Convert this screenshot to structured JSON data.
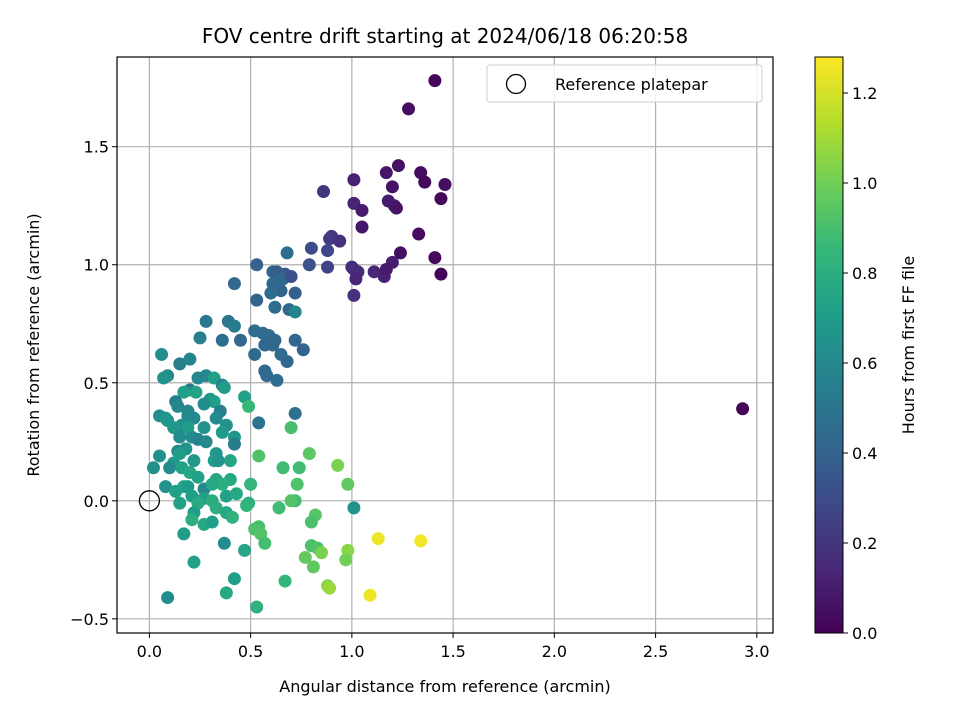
{
  "chart_data": {
    "type": "scatter",
    "title": "FOV centre drift starting at 2024/06/18 06:20:58",
    "xlabel": "Angular distance from reference (arcmin)",
    "ylabel": "Rotation from reference (arcmin)",
    "xlim": [
      -0.16,
      3.08
    ],
    "ylim": [
      -0.56,
      1.88
    ],
    "xticks": [
      0.0,
      0.5,
      1.0,
      1.5,
      2.0,
      2.5,
      3.0
    ],
    "xtick_labels": [
      "0.0",
      "0.5",
      "1.0",
      "1.5",
      "2.0",
      "2.5",
      "3.0"
    ],
    "yticks": [
      -0.5,
      0.0,
      0.5,
      1.0,
      1.5
    ],
    "ytick_labels": [
      "−0.5",
      "0.0",
      "0.5",
      "1.0",
      "1.5"
    ],
    "grid": true,
    "legend": {
      "placement": "upper-right",
      "entries": [
        "Reference platepar"
      ]
    },
    "reference_point": {
      "x": 0.0,
      "y": 0.0
    },
    "colorbar": {
      "label": "Hours from first FF file",
      "colormap": "viridis",
      "range": [
        0.0,
        1.28
      ],
      "ticks": [
        0.0,
        0.2,
        0.4,
        0.6,
        0.8,
        1.0,
        1.2
      ],
      "tick_labels": [
        "0.0",
        "0.2",
        "0.4",
        "0.6",
        "0.8",
        "1.0",
        "1.2"
      ],
      "stops": [
        "#440154",
        "#482878",
        "#3e4989",
        "#31688e",
        "#26828e",
        "#1f9e89",
        "#35b779",
        "#6ece58",
        "#b5de2b",
        "#fde725"
      ]
    },
    "points": [
      [
        1.41,
        1.78,
        0.02
      ],
      [
        1.28,
        1.66,
        0.05
      ],
      [
        1.23,
        1.42,
        0.06
      ],
      [
        1.34,
        1.39,
        0.04
      ],
      [
        1.36,
        1.35,
        0.03
      ],
      [
        1.46,
        1.34,
        0.05
      ],
      [
        1.44,
        1.28,
        0.03
      ],
      [
        1.17,
        1.39,
        0.08
      ],
      [
        1.2,
        1.33,
        0.07
      ],
      [
        1.18,
        1.27,
        0.1
      ],
      [
        1.21,
        1.25,
        0.09
      ],
      [
        1.22,
        1.24,
        0.07
      ],
      [
        1.33,
        1.13,
        0.04
      ],
      [
        1.24,
        1.05,
        0.05
      ],
      [
        1.2,
        1.01,
        0.11
      ],
      [
        1.41,
        1.03,
        0.03
      ],
      [
        1.44,
        0.96,
        0.02
      ],
      [
        1.16,
        0.95,
        0.12
      ],
      [
        1.17,
        0.98,
        0.09
      ],
      [
        1.11,
        0.97,
        0.14
      ],
      [
        1.01,
        1.36,
        0.12
      ],
      [
        1.01,
        1.26,
        0.13
      ],
      [
        1.05,
        1.23,
        0.1
      ],
      [
        1.05,
        1.16,
        0.08
      ],
      [
        0.9,
        1.12,
        0.2
      ],
      [
        0.89,
        1.11,
        0.22
      ],
      [
        0.94,
        1.1,
        0.18
      ],
      [
        0.86,
        1.31,
        0.2
      ],
      [
        1.0,
        0.99,
        0.15
      ],
      [
        1.01,
        0.98,
        0.17
      ],
      [
        1.03,
        0.97,
        0.16
      ],
      [
        1.02,
        0.94,
        0.13
      ],
      [
        1.01,
        0.87,
        0.18
      ],
      [
        0.8,
        1.07,
        0.3
      ],
      [
        0.88,
        1.06,
        0.28
      ],
      [
        0.79,
        1.0,
        0.33
      ],
      [
        0.88,
        0.99,
        0.26
      ],
      [
        0.53,
        1.0,
        0.4
      ],
      [
        0.68,
        1.05,
        0.45
      ],
      [
        0.61,
        0.97,
        0.41
      ],
      [
        0.63,
        0.97,
        0.38
      ],
      [
        0.67,
        0.96,
        0.36
      ],
      [
        0.66,
        0.94,
        0.43
      ],
      [
        0.7,
        0.95,
        0.32
      ],
      [
        0.61,
        0.92,
        0.44
      ],
      [
        0.65,
        0.89,
        0.41
      ],
      [
        0.72,
        0.88,
        0.39
      ],
      [
        0.6,
        0.88,
        0.45
      ],
      [
        0.42,
        0.92,
        0.42
      ],
      [
        0.53,
        0.85,
        0.41
      ],
      [
        0.62,
        0.82,
        0.45
      ],
      [
        0.69,
        0.81,
        0.42
      ],
      [
        0.72,
        0.8,
        0.58
      ],
      [
        0.28,
        0.76,
        0.52
      ],
      [
        0.39,
        0.76,
        0.5
      ],
      [
        0.42,
        0.74,
        0.53
      ],
      [
        0.52,
        0.72,
        0.45
      ],
      [
        0.56,
        0.71,
        0.44
      ],
      [
        0.59,
        0.7,
        0.45
      ],
      [
        0.36,
        0.68,
        0.46
      ],
      [
        0.45,
        0.68,
        0.42
      ],
      [
        0.62,
        0.68,
        0.44
      ],
      [
        0.25,
        0.69,
        0.55
      ],
      [
        0.72,
        0.68,
        0.42
      ],
      [
        0.57,
        0.66,
        0.43
      ],
      [
        0.61,
        0.66,
        0.42
      ],
      [
        0.76,
        0.64,
        0.41
      ],
      [
        0.52,
        0.62,
        0.43
      ],
      [
        0.65,
        0.62,
        0.45
      ],
      [
        0.68,
        0.59,
        0.43
      ],
      [
        0.2,
        0.6,
        0.58
      ],
      [
        0.06,
        0.62,
        0.62
      ],
      [
        0.15,
        0.58,
        0.55
      ],
      [
        0.24,
        0.52,
        0.6
      ],
      [
        0.57,
        0.55,
        0.43
      ],
      [
        0.58,
        0.53,
        0.44
      ],
      [
        0.63,
        0.51,
        0.45
      ],
      [
        0.09,
        0.53,
        0.62
      ],
      [
        0.07,
        0.52,
        0.66
      ],
      [
        0.28,
        0.53,
        0.59
      ],
      [
        0.32,
        0.52,
        0.72
      ],
      [
        0.36,
        0.49,
        0.56
      ],
      [
        0.2,
        0.47,
        0.55
      ],
      [
        0.17,
        0.46,
        0.72
      ],
      [
        0.23,
        0.46,
        0.74
      ],
      [
        0.37,
        0.48,
        0.7
      ],
      [
        0.47,
        0.44,
        0.73
      ],
      [
        0.13,
        0.42,
        0.55
      ],
      [
        0.3,
        0.43,
        0.68
      ],
      [
        0.49,
        0.4,
        0.86
      ],
      [
        0.32,
        0.42,
        0.72
      ],
      [
        0.14,
        0.4,
        0.6
      ],
      [
        0.19,
        0.38,
        0.58
      ],
      [
        0.27,
        0.41,
        0.62
      ],
      [
        0.35,
        0.38,
        0.54
      ],
      [
        0.72,
        0.37,
        0.47
      ],
      [
        0.05,
        0.36,
        0.63
      ],
      [
        0.09,
        0.34,
        0.64
      ],
      [
        0.19,
        0.36,
        0.61
      ],
      [
        0.22,
        0.35,
        0.6
      ],
      [
        0.33,
        0.35,
        0.61
      ],
      [
        0.08,
        0.35,
        0.67
      ],
      [
        0.16,
        0.32,
        0.63
      ],
      [
        0.38,
        0.32,
        0.65
      ],
      [
        0.12,
        0.31,
        0.68
      ],
      [
        0.27,
        0.31,
        0.66
      ],
      [
        0.54,
        0.33,
        0.49
      ],
      [
        0.19,
        0.31,
        0.71
      ],
      [
        0.7,
        0.31,
        0.9
      ],
      [
        0.36,
        0.29,
        0.69
      ],
      [
        0.42,
        0.27,
        0.67
      ],
      [
        0.15,
        0.27,
        0.62
      ],
      [
        0.21,
        0.27,
        0.63
      ],
      [
        0.24,
        0.26,
        0.58
      ],
      [
        0.28,
        0.25,
        0.6
      ],
      [
        0.42,
        0.24,
        0.53
      ],
      [
        0.18,
        0.22,
        0.65
      ],
      [
        0.14,
        0.21,
        0.61
      ],
      [
        0.33,
        0.2,
        0.67
      ],
      [
        0.79,
        0.2,
        0.95
      ],
      [
        0.54,
        0.19,
        0.92
      ],
      [
        0.15,
        0.2,
        0.7
      ],
      [
        0.05,
        0.19,
        0.64
      ],
      [
        0.32,
        0.17,
        0.72
      ],
      [
        0.4,
        0.17,
        0.75
      ],
      [
        0.12,
        0.16,
        0.69
      ],
      [
        0.34,
        0.17,
        0.66
      ],
      [
        0.22,
        0.17,
        0.68
      ],
      [
        0.02,
        0.14,
        0.64
      ],
      [
        0.1,
        0.14,
        0.61
      ],
      [
        0.16,
        0.14,
        0.74
      ],
      [
        0.2,
        0.12,
        0.76
      ],
      [
        0.66,
        0.14,
        0.88
      ],
      [
        0.74,
        0.14,
        0.88
      ],
      [
        0.93,
        0.15,
        1.02
      ],
      [
        0.24,
        0.1,
        0.73
      ],
      [
        0.33,
        0.09,
        0.76
      ],
      [
        0.4,
        0.09,
        0.77
      ],
      [
        0.36,
        0.07,
        0.8
      ],
      [
        0.17,
        0.06,
        0.75
      ],
      [
        0.19,
        0.06,
        0.7
      ],
      [
        0.27,
        0.05,
        0.6
      ],
      [
        0.08,
        0.06,
        0.65
      ],
      [
        0.31,
        0.07,
        0.76
      ],
      [
        0.5,
        0.07,
        0.84
      ],
      [
        0.73,
        0.07,
        0.92
      ],
      [
        0.98,
        0.07,
        0.96
      ],
      [
        0.13,
        0.04,
        0.72
      ],
      [
        0.21,
        0.02,
        0.71
      ],
      [
        0.27,
        0.01,
        0.72
      ],
      [
        0.38,
        0.02,
        0.73
      ],
      [
        0.43,
        0.03,
        0.77
      ],
      [
        0.72,
        0.0,
        0.89
      ],
      [
        0.7,
        0.0,
        0.93
      ],
      [
        0.31,
        0.0,
        0.79
      ],
      [
        0.49,
        -0.01,
        0.8
      ],
      [
        0.15,
        -0.01,
        0.73
      ],
      [
        0.24,
        -0.01,
        0.78
      ],
      [
        0.48,
        -0.02,
        0.83
      ],
      [
        0.33,
        -0.03,
        0.8
      ],
      [
        1.01,
        -0.03,
        0.65
      ],
      [
        0.22,
        -0.05,
        0.72
      ],
      [
        0.38,
        -0.05,
        0.76
      ],
      [
        0.64,
        -0.03,
        0.88
      ],
      [
        0.41,
        -0.07,
        0.82
      ],
      [
        0.82,
        -0.06,
        0.94
      ],
      [
        0.21,
        -0.08,
        0.8
      ],
      [
        0.27,
        -0.1,
        0.77
      ],
      [
        0.31,
        -0.09,
        0.72
      ],
      [
        0.8,
        -0.09,
        0.91
      ],
      [
        0.54,
        -0.11,
        0.9
      ],
      [
        0.52,
        -0.12,
        0.91
      ],
      [
        0.55,
        -0.14,
        0.93
      ],
      [
        0.17,
        -0.14,
        0.7
      ],
      [
        0.37,
        -0.18,
        0.62
      ],
      [
        0.57,
        -0.18,
        0.89
      ],
      [
        0.8,
        -0.19,
        0.91
      ],
      [
        0.83,
        -0.2,
        0.92
      ],
      [
        1.13,
        -0.16,
        1.25
      ],
      [
        1.34,
        -0.17,
        1.26
      ],
      [
        0.98,
        -0.21,
        1.05
      ],
      [
        0.47,
        -0.21,
        0.75
      ],
      [
        0.85,
        -0.22,
        1.02
      ],
      [
        0.77,
        -0.24,
        0.97
      ],
      [
        0.97,
        -0.25,
        1.0
      ],
      [
        0.22,
        -0.26,
        0.73
      ],
      [
        0.81,
        -0.28,
        0.96
      ],
      [
        0.42,
        -0.33,
        0.71
      ],
      [
        0.67,
        -0.34,
        0.84
      ],
      [
        0.88,
        -0.36,
        1.05
      ],
      [
        0.89,
        -0.37,
        1.08
      ],
      [
        0.38,
        -0.39,
        0.77
      ],
      [
        1.09,
        -0.4,
        1.25
      ],
      [
        0.09,
        -0.41,
        0.62
      ],
      [
        0.53,
        -0.45,
        0.82
      ],
      [
        2.93,
        0.39,
        0.02
      ]
    ]
  }
}
